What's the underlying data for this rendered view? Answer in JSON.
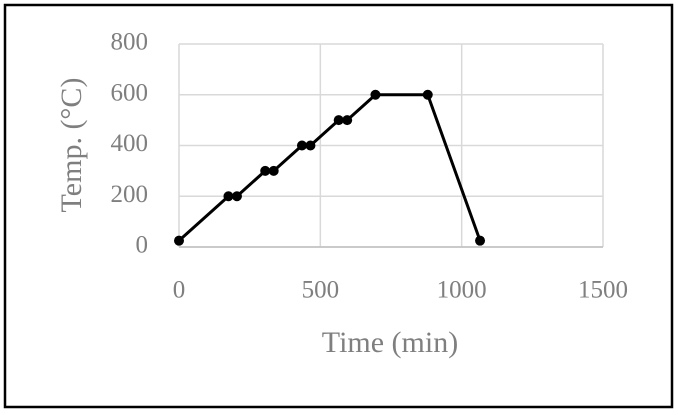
{
  "chart_data": {
    "type": "line",
    "x_label": "Time (min)",
    "y_label": "Temp. (°C)",
    "x": [
      0,
      175,
      205,
      305,
      335,
      435,
      465,
      565,
      595,
      695,
      880,
      1065
    ],
    "series": [
      {
        "color": "#000000",
        "values": [
          25,
          200,
          200,
          300,
          300,
          400,
          400,
          500,
          500,
          600,
          600,
          25
        ]
      }
    ],
    "xlim": [
      0,
      1500
    ],
    "xticks": [
      0,
      500,
      1000,
      1500
    ],
    "ylim": [
      0,
      800
    ],
    "yticks": [
      0,
      200,
      400,
      600,
      800
    ],
    "grid": true
  }
}
